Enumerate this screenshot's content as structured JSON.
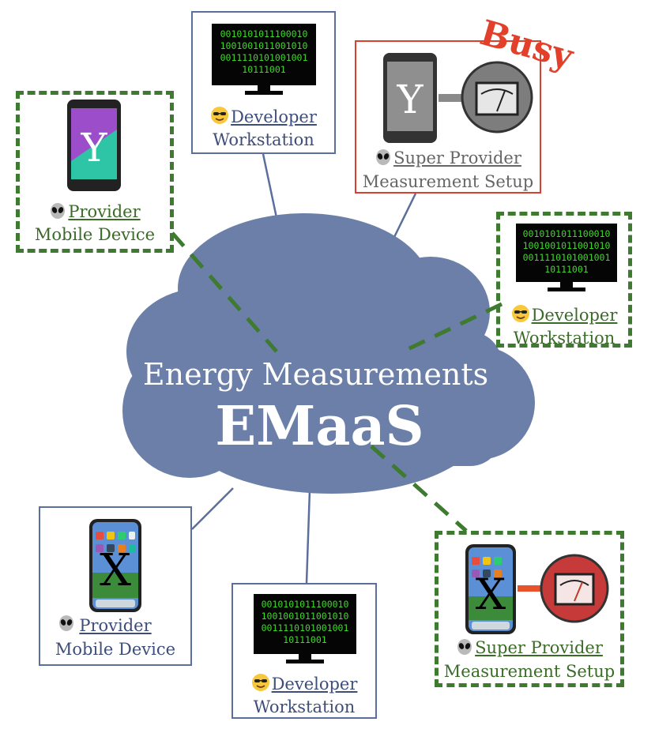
{
  "cloud": {
    "subtitle": "Energy Measurements",
    "title": "EMaaS",
    "fill_color": "#6b7fa8"
  },
  "binary_screen": [
    "0010101011100010",
    "1001001011001010",
    "0011110101001001",
    "10111001"
  ],
  "nodes": {
    "provider_top_left": {
      "role": "Provider",
      "sub": "Mobile Device",
      "icon": "alien-icon",
      "device": "android-y-phone",
      "state": "active"
    },
    "developer_top": {
      "role": "Developer",
      "sub": "Workstation",
      "icon": "sunglasses-smiley-icon",
      "state": "idle"
    },
    "super_provider_top_right": {
      "role": "Super Provider",
      "sub": "Measurement Setup",
      "icon": "alien-icon",
      "device": "android-y-phone",
      "status": "Busy",
      "state": "busy"
    },
    "developer_right": {
      "role": "Developer",
      "sub": "Workstation",
      "icon": "sunglasses-smiley-icon",
      "state": "active"
    },
    "provider_bottom_left": {
      "role": "Provider",
      "sub": "Mobile Device",
      "icon": "alien-icon",
      "device": "iphone-x",
      "state": "idle"
    },
    "developer_bottom": {
      "role": "Developer",
      "sub": "Workstation",
      "icon": "sunglasses-smiley-icon",
      "state": "idle"
    },
    "super_provider_bottom_right": {
      "role": "Super Provider",
      "sub": "Measurement Setup",
      "icon": "alien-icon",
      "device": "iphone-x",
      "state": "active"
    }
  },
  "colors": {
    "idle_border": "#5b6f9c",
    "active_border": "#3e7a30",
    "busy_border": "#d9412c",
    "binary_text": "#3fd92b"
  }
}
